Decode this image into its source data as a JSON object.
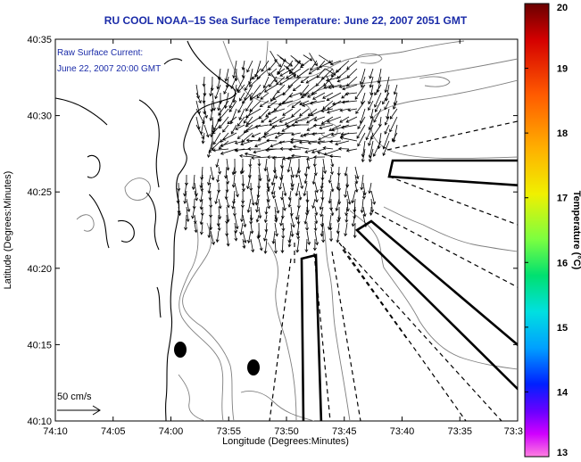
{
  "title": "RU COOL   NOAA–15  Sea Surface Temperature:  June 22, 2007 2051 GMT",
  "annotation": {
    "line1": "Raw Surface Current:",
    "line2": "June 22, 2007 20:00 GMT",
    "scale": "50 cm/s"
  },
  "axes": {
    "xlabel": "Longitude (Degrees:Minutes)",
    "ylabel": "Latitude (Degrees:Minutes)",
    "x_ticks": [
      "74:10",
      "74:05",
      "74:00",
      "73:55",
      "73:50",
      "73:45",
      "73:40",
      "73:35",
      "73:3"
    ],
    "y_ticks": [
      "40:35",
      "40:30",
      "40:25",
      "40:20",
      "40:15",
      "40:10"
    ],
    "x_range_min": [
      -70,
      -33
    ],
    "y_range_min": [
      10,
      35
    ]
  },
  "colorbar": {
    "label": "Temperature (°C)",
    "ticks": [
      "20",
      "19",
      "18",
      "17",
      "16",
      "15",
      "14",
      "13"
    ],
    "range": [
      13,
      20
    ]
  },
  "colors": {
    "title": "#1a2ba8",
    "annotation": "#1a2ba8",
    "contour": "#808080",
    "land": "#000000"
  }
}
